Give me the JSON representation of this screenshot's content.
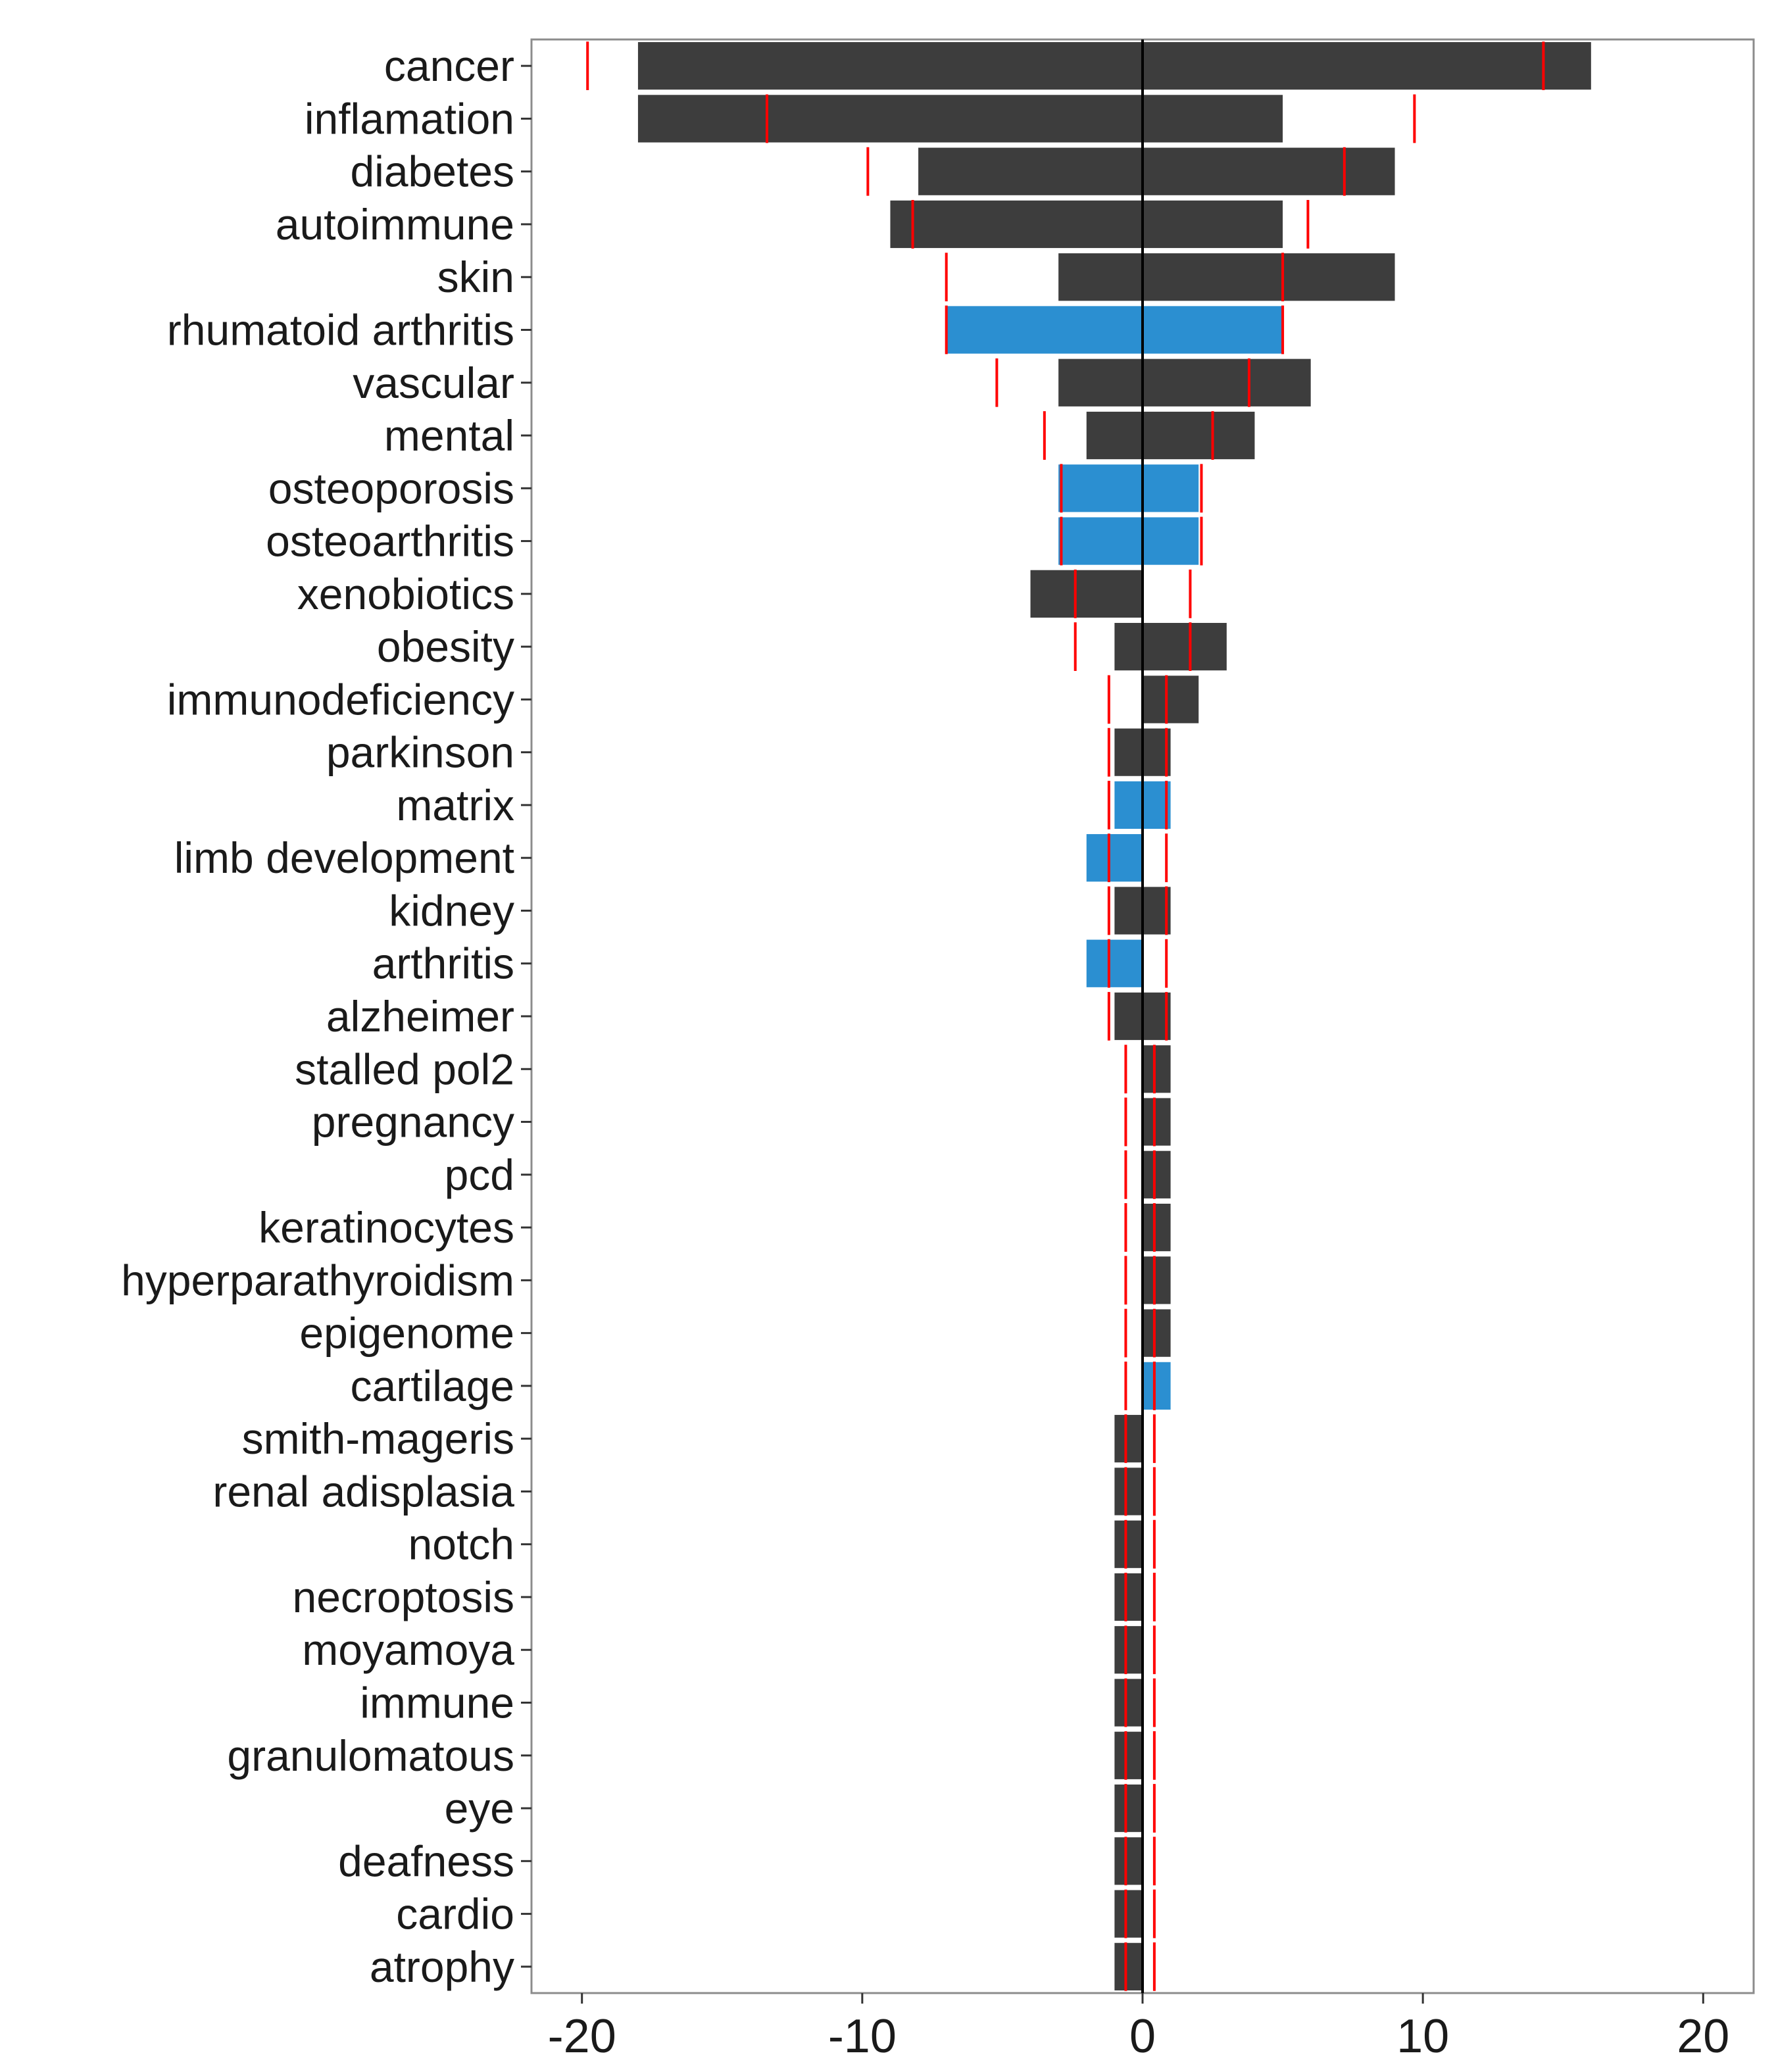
{
  "chart_data": {
    "type": "bar",
    "orientation": "horizontal",
    "diverging": true,
    "xlim": [
      -21.8,
      21.8
    ],
    "x_ticks": [
      -20,
      -10,
      0,
      10,
      20
    ],
    "x_tick_labels": [
      "-20",
      "-10",
      "0",
      "10",
      "20"
    ],
    "grid": false,
    "colors": {
      "default_bar": "#3d3d3d",
      "highlight_bar": "#2b8fd1",
      "expected_marker": "#ff0000",
      "zero_line": "#000000",
      "panel_border": "#8c8c8c"
    },
    "categories": [
      "cancer",
      "inflamation",
      "diabetes",
      "autoimmune",
      "skin",
      "rhumatoid arthritis",
      "vascular",
      "mental",
      "osteoporosis",
      "osteoarthritis",
      "xenobiotics",
      "obesity",
      "immunodeficiency",
      "parkinson",
      "matrix",
      "limb development",
      "kidney",
      "arthritis",
      "alzheimer",
      "stalled pol2",
      "pregnancy",
      "pcd",
      "keratinocytes",
      "hyperparathyroidism",
      "epigenome",
      "cartilage",
      "smith-mageris",
      "renal adisplasia",
      "notch",
      "necroptosis",
      "moyamoya",
      "immune",
      "granulomatous",
      "eye",
      "deafness",
      "cardio",
      "atrophy"
    ],
    "highlighted": [
      false,
      false,
      false,
      false,
      false,
      true,
      false,
      false,
      true,
      true,
      false,
      false,
      false,
      false,
      true,
      true,
      false,
      true,
      false,
      false,
      false,
      false,
      false,
      false,
      false,
      true,
      false,
      false,
      false,
      false,
      false,
      false,
      false,
      false,
      false,
      false,
      false
    ],
    "series": [
      {
        "values": [
          -18,
          -18,
          -8,
          -9,
          -3,
          -7,
          -3,
          -2,
          -3,
          -3,
          -4,
          -1,
          0,
          -1,
          -1,
          -2,
          -1,
          -2,
          -1,
          0,
          0,
          0,
          0,
          0,
          0,
          0,
          -1,
          -1,
          -1,
          -1,
          -1,
          -1,
          -1,
          -1,
          -1,
          -1,
          -1
        ]
      },
      {
        "values": [
          16,
          5,
          9,
          5,
          9,
          5,
          6,
          4,
          2,
          2,
          0,
          3,
          2,
          1,
          1,
          0,
          1,
          0,
          1,
          1,
          1,
          1,
          1,
          1,
          1,
          1,
          0,
          0,
          0,
          0,
          0,
          0,
          0,
          0,
          0,
          0,
          0
        ]
      }
    ],
    "expected_markers": {
      "negative": [
        -19.8,
        -13.4,
        -9.8,
        -8.2,
        -7.0,
        -7.0,
        -5.2,
        -3.5,
        -2.9,
        -2.9,
        -2.4,
        -2.4,
        -1.2,
        -1.2,
        -1.2,
        -1.2,
        -1.2,
        -1.2,
        -1.2,
        -0.6,
        -0.6,
        -0.6,
        -0.6,
        -0.6,
        -0.6,
        -0.6,
        -0.6,
        -0.6,
        -0.6,
        -0.6,
        -0.6,
        -0.6,
        -0.6,
        -0.6,
        -0.6,
        -0.6,
        -0.6
      ],
      "positive": [
        14.3,
        9.7,
        7.2,
        5.9,
        5.0,
        5.0,
        3.8,
        2.5,
        2.1,
        2.1,
        1.7,
        1.7,
        0.85,
        0.85,
        0.85,
        0.85,
        0.85,
        0.85,
        0.85,
        0.42,
        0.42,
        0.42,
        0.42,
        0.42,
        0.42,
        0.42,
        0.42,
        0.42,
        0.42,
        0.42,
        0.42,
        0.42,
        0.42,
        0.42,
        0.42,
        0.42,
        0.42
      ]
    }
  }
}
